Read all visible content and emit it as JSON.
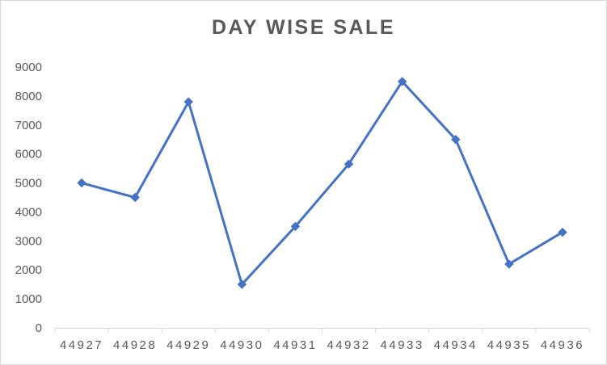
{
  "chart_data": {
    "type": "line",
    "title": "DAY WISE SALE",
    "xlabel": "",
    "ylabel": "",
    "categories": [
      "44927",
      "44928",
      "44929",
      "44930",
      "44931",
      "44932",
      "44933",
      "44934",
      "44935",
      "44936"
    ],
    "series": [
      {
        "values": [
          5000,
          4500,
          7800,
          1500,
          3500,
          5650,
          8500,
          6500,
          2200,
          3300
        ]
      }
    ],
    "ylim": [
      0,
      9000
    ],
    "yticks": [
      "0",
      "1000",
      "2000",
      "3000",
      "4000",
      "5000",
      "6000",
      "7000",
      "8000",
      "9000"
    ],
    "grid": false,
    "legend": "none",
    "colors": {
      "line": "#4472c4",
      "axis": "#d9d9d9",
      "text": "#595959"
    }
  }
}
